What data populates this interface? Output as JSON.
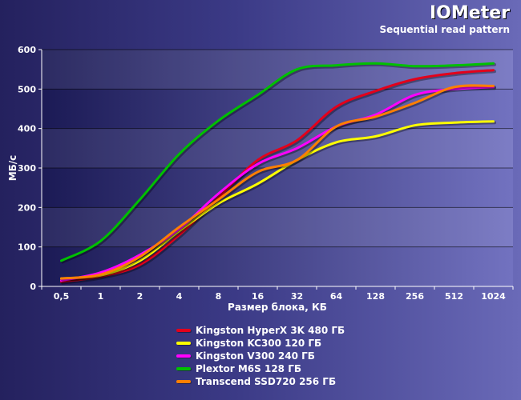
{
  "chart_data": {
    "type": "line",
    "title": "IOMeter",
    "subtitle": "Sequential read pattern",
    "xlabel": "Размер блока, КБ",
    "ylabel": "МБ/с",
    "categories": [
      "0,5",
      "1",
      "2",
      "4",
      "8",
      "16",
      "32",
      "64",
      "128",
      "256",
      "512",
      "1024"
    ],
    "ylim": [
      0,
      600
    ],
    "yticks": [
      "0",
      "100",
      "200",
      "300",
      "400",
      "500",
      "600"
    ],
    "grid": true,
    "legend_position": "bottom",
    "series": [
      {
        "name": "Kingston HyperX 3K 480 ГБ",
        "color": "#e3001b",
        "values": [
          12,
          25,
          55,
          130,
          225,
          320,
          370,
          455,
          495,
          525,
          540,
          548
        ]
      },
      {
        "name": "Kingston KC300 120 ГБ",
        "color": "#ffff00",
        "values": [
          20,
          28,
          65,
          140,
          210,
          260,
          320,
          365,
          380,
          408,
          415,
          418
        ]
      },
      {
        "name": "Kingston V300 240 ГБ",
        "color": "#ff00ff",
        "values": [
          15,
          35,
          80,
          145,
          235,
          310,
          350,
          405,
          435,
          485,
          500,
          505
        ]
      },
      {
        "name": "Plextor M6S 128 ГБ",
        "color": "#00c000",
        "values": [
          65,
          115,
          220,
          335,
          420,
          485,
          550,
          560,
          565,
          558,
          560,
          565
        ]
      },
      {
        "name": "Transcend SSD720 256 ГБ",
        "color": "#ff7f00",
        "values": [
          20,
          30,
          75,
          150,
          220,
          290,
          320,
          405,
          430,
          465,
          505,
          508
        ]
      }
    ]
  }
}
